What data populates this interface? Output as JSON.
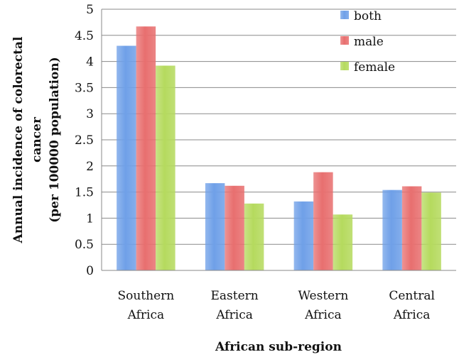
{
  "chart_data": {
    "type": "bar",
    "title": "",
    "xlabel": "African sub-region",
    "ylabel_lines": [
      "Annual incidence of colorectal",
      "cancer",
      "(per 100000 population)"
    ],
    "ylim": [
      0,
      5
    ],
    "yticks": [
      "0",
      "0.5",
      "1",
      "1.5",
      "2",
      "2.5",
      "3",
      "3.5",
      "4",
      "4.5",
      "5"
    ],
    "categories": [
      [
        "Southern",
        "Africa"
      ],
      [
        "Eastern",
        "Africa"
      ],
      [
        "Western",
        "Africa"
      ],
      [
        "Central",
        "Africa"
      ]
    ],
    "series": [
      {
        "name": "both",
        "color": "#6FA0E8",
        "values": [
          4.3,
          1.67,
          1.32,
          1.54
        ]
      },
      {
        "name": "male",
        "color": "#E86F6F",
        "values": [
          4.67,
          1.62,
          1.88,
          1.61
        ]
      },
      {
        "name": "female",
        "color": "#B5DA5E",
        "values": [
          3.92,
          1.28,
          1.07,
          1.49
        ]
      }
    ],
    "grid": true,
    "legend_position": "top-right"
  }
}
